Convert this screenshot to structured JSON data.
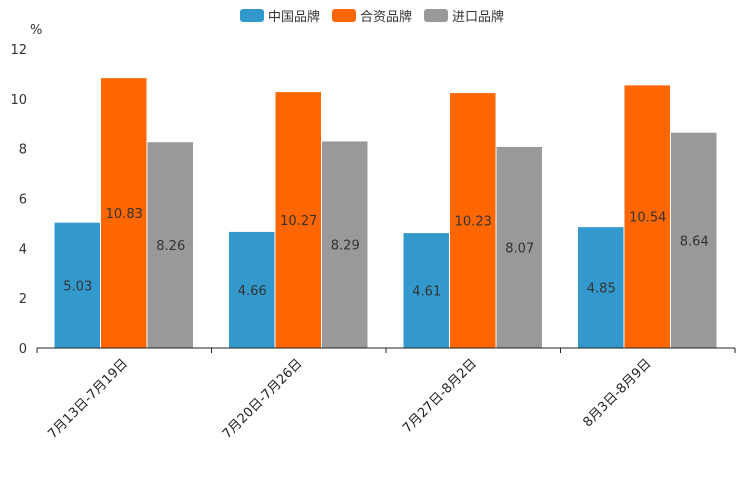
{
  "chart_data": {
    "type": "bar",
    "title": "",
    "xlabel": "",
    "ylabel": "%",
    "ylim": [
      0,
      12
    ],
    "yticks": [
      0,
      2,
      4,
      6,
      8,
      10,
      12
    ],
    "legend_position": "top-center",
    "grid": false,
    "categories": [
      "7月13日-7月19日",
      "7月20日-7月26日",
      "7月27日-8月2日",
      "8月3日-8月9日"
    ],
    "series": [
      {
        "name": "中国品牌",
        "color": "#3399cc",
        "values": [
          5.03,
          4.66,
          4.61,
          4.85
        ]
      },
      {
        "name": "合资品牌",
        "color": "#ff6600",
        "values": [
          10.83,
          10.27,
          10.23,
          10.54
        ]
      },
      {
        "name": "进口品牌",
        "color": "#999999",
        "values": [
          8.26,
          8.29,
          8.07,
          8.64
        ]
      }
    ]
  }
}
